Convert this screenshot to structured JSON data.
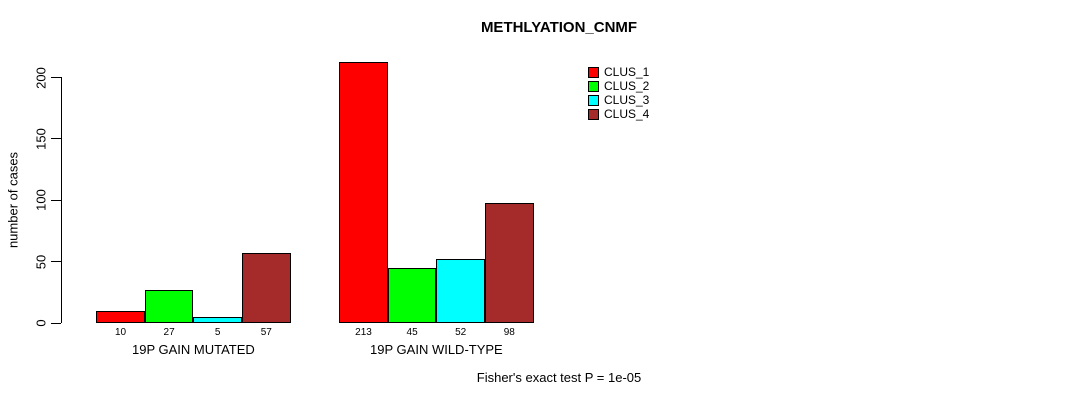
{
  "chart_data": {
    "type": "bar",
    "title": "METHLYATION_CNMF",
    "ylabel": "number of cases",
    "categories": [
      "19P GAIN MUTATED",
      "19P GAIN WILD-TYPE"
    ],
    "series": [
      {
        "name": "CLUS_1",
        "color": "#FF0000",
        "values": [
          10,
          213
        ]
      },
      {
        "name": "CLUS_2",
        "color": "#00FF00",
        "values": [
          27,
          45
        ]
      },
      {
        "name": "CLUS_3",
        "color": "#00FFFF",
        "values": [
          5,
          52
        ]
      },
      {
        "name": "CLUS_4",
        "color": "#A52A2A",
        "values": [
          57,
          98
        ]
      }
    ],
    "bar_value_labels_shown": true,
    "yticks": [
      0,
      50,
      100,
      150,
      200
    ],
    "ylim": [
      0,
      213
    ],
    "grid": false,
    "legend_position": "top-right",
    "legend_entries": [
      "CLUS_1",
      "CLUS_2",
      "CLUS_3",
      "CLUS_4"
    ],
    "annotation": "Fisher's exact test P = 1e-05"
  },
  "colors": {
    "axis": "#000000",
    "bar_border": "#000000",
    "background": "#FFFFFF"
  }
}
